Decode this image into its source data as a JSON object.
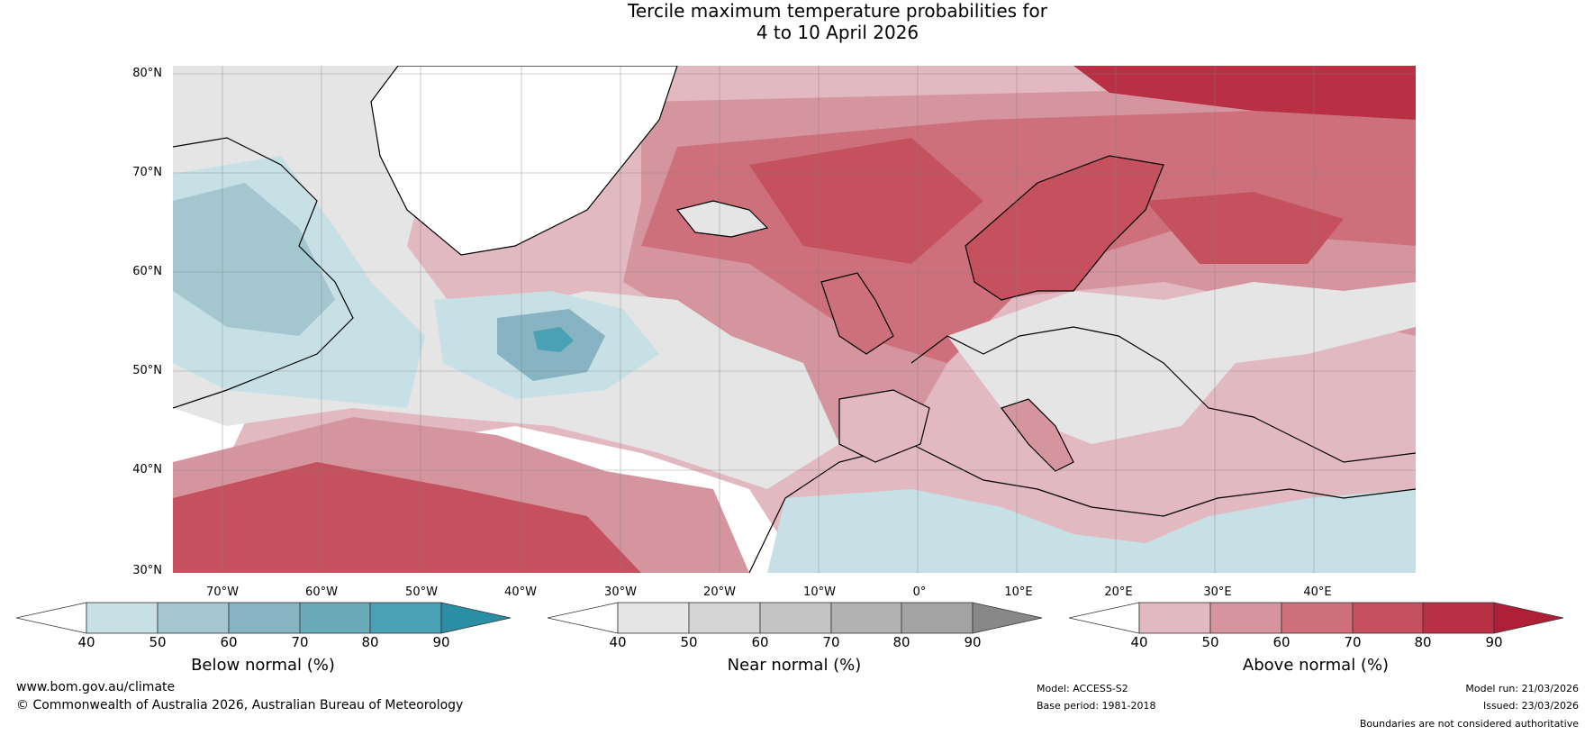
{
  "title": {
    "line1": "Tercile maximum temperature probabilities for",
    "line2": "4 to 10 April 2026"
  },
  "map": {
    "lat_labels": [
      "80°N",
      "70°N",
      "60°N",
      "50°N",
      "40°N",
      "30°N"
    ],
    "lon_labels": [
      "70°W",
      "60°W",
      "50°W",
      "40°W",
      "30°W",
      "20°W",
      "10°W",
      "0°",
      "10°E",
      "20°E",
      "30°E",
      "40°E"
    ]
  },
  "colorbars": {
    "below": {
      "title": "Below normal (%)",
      "ticks": [
        "40",
        "50",
        "60",
        "70",
        "80",
        "90"
      ],
      "colors": [
        "#ffffff",
        "#c6e0e6",
        "#a3c6cf",
        "#87b3c2",
        "#6aabb9",
        "#4aa1b3",
        "#2a8ea4"
      ]
    },
    "near": {
      "title": "Near normal (%)",
      "ticks": [
        "40",
        "50",
        "60",
        "70",
        "80",
        "90"
      ],
      "colors": [
        "#ffffff",
        "#e5e5e5",
        "#d4d4d4",
        "#c4c4c4",
        "#b3b3b3",
        "#a3a3a3",
        "#888888"
      ]
    },
    "above": {
      "title": "Above normal (%)",
      "ticks": [
        "40",
        "50",
        "60",
        "70",
        "80",
        "90"
      ],
      "colors": [
        "#ffffff",
        "#e2b9c0",
        "#d5959f",
        "#cd707c",
        "#c5515f",
        "#b92f44",
        "#b01f38"
      ]
    }
  },
  "footer": {
    "website": "www.bom.gov.au/climate",
    "copyright": "© Commonwealth of Australia 2026, Australian Bureau of Meteorology",
    "model": "Model: ACCESS-S2",
    "base_period": "Base period: 1981-2018",
    "model_run": "Model run: 21/03/2026",
    "issued": "Issued: 23/03/2026",
    "disclaimer": "Boundaries are not considered authoritative"
  }
}
